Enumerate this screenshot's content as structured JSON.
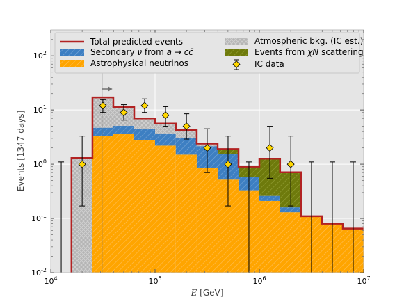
{
  "chart_data": {
    "type": "bar",
    "xscale": "log",
    "yscale": "log",
    "xlim": [
      10000,
      10000000
    ],
    "ylim": [
      0.01,
      300
    ],
    "xlabel": "$E$ [GeV]",
    "ylabel": "Events [1347 days]",
    "x_tick_labels": [
      "10^4",
      "10^5",
      "10^6",
      "10^7"
    ],
    "y_tick_labels": [
      "10^-2",
      "10^-1",
      "10^0",
      "10^1",
      "10^2"
    ],
    "grid": true,
    "legend_position": "top",
    "threshold_energy": 31000,
    "bin_edges": [
      15800,
      25100,
      39800,
      63100,
      100000,
      158000,
      251000,
      398000,
      631000,
      1000000,
      1580000,
      2510000,
      3980000,
      6310000,
      10000000
    ],
    "series": [
      {
        "name": "Astrophysical neutrinos",
        "values": [
          0,
          3.3,
          3.6,
          2.8,
          2.2,
          1.5,
          0.85,
          0.52,
          0.33,
          0.21,
          0.13,
          0.11,
          0.08,
          0.065
        ]
      },
      {
        "name": "Secondary ν from a → cc̄",
        "values": [
          0,
          1.4,
          1.5,
          1.7,
          1.5,
          1.5,
          1.3,
          1.0,
          0.25,
          0.05,
          0.03,
          0.0,
          0.0,
          0.0
        ]
      },
      {
        "name": "Events from χN scattering",
        "values": [
          0,
          0,
          0,
          0,
          0,
          0,
          0,
          0.38,
          0.32,
          1.0,
          0.55,
          0.0,
          0.0,
          0.0
        ]
      },
      {
        "name": "Atmospheric bkg. (IC est.)",
        "values": [
          1.3,
          12.3,
          6.1,
          2.5,
          1.9,
          1.3,
          0.25,
          0.0,
          0.0,
          0.0,
          0.0,
          0.0,
          0.0,
          0.0
        ]
      }
    ],
    "total": {
      "name": "Total predicted events",
      "values": [
        1.3,
        17.0,
        11.2,
        7.0,
        5.6,
        4.3,
        2.4,
        1.9,
        0.9,
        1.26,
        0.71,
        0.11,
        0.08,
        0.065
      ]
    },
    "ic_data": {
      "name": "IC data",
      "x": [
        20000,
        31600,
        50100,
        79400,
        126000,
        200000,
        316000,
        501000,
        1260000,
        2000000
      ],
      "y": [
        1,
        12,
        9,
        12,
        8,
        5,
        2,
        1,
        2,
        1
      ],
      "y_low": [
        0.17,
        9,
        6.5,
        9,
        5,
        2.9,
        0.7,
        0.17,
        0.55,
        0.17
      ],
      "y_high": [
        3.3,
        15.5,
        12.5,
        16,
        11.5,
        8.5,
        4.5,
        3.3,
        5,
        3.3
      ],
      "upper_limit_x": [
        12600,
        794000,
        3160000,
        5010000,
        7940000
      ],
      "upper_limit_y": [
        1.1,
        1.1,
        1.1,
        1.1,
        1.1
      ]
    },
    "colors": {
      "astro": "#ffa500",
      "secondary": "#3d7fc2",
      "chi": "#6e7a0c",
      "atmo": "#b0b0b0",
      "total": "#b22222",
      "data": "#ffd700",
      "background": "#e5e5e5"
    }
  }
}
